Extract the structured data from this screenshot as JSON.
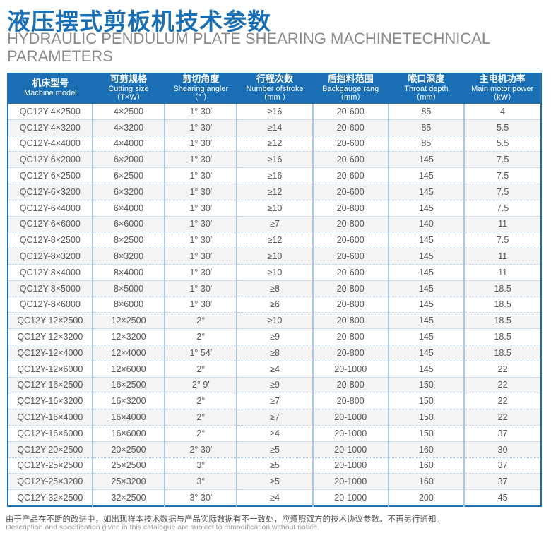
{
  "title": "液压摆式剪板机技术参数",
  "subtitle": "HYDRAULIC PENDULUM PLATE SHEARING MACHINETECHNICAL PARAMETERS",
  "headers": [
    {
      "cn": "机床型号",
      "en": "Machine model",
      "unit": ""
    },
    {
      "cn": "可剪规格",
      "en": "Cutting size",
      "unit": "（T×W）"
    },
    {
      "cn": "剪切角度",
      "en": "Shearing angler",
      "unit": "（°  ）"
    },
    {
      "cn": "行程次数",
      "en": "Number ofstroke",
      "unit": "（mm ）"
    },
    {
      "cn": "后挡料范围",
      "en": "Backgauge rang",
      "unit": "（mm）"
    },
    {
      "cn": "喉口深度",
      "en": "Throat depth",
      "unit": "（mm）"
    },
    {
      "cn": "主电机功率",
      "en": "Main motor power",
      "unit": "（kW）"
    }
  ],
  "rows": [
    [
      "QC12Y-4×2500",
      "4×2500",
      "1°  30′",
      "≥16",
      "20-600",
      "85",
      "4"
    ],
    [
      "QC12Y-4×3200",
      "4×3200",
      "1°  30′",
      "≥14",
      "20-600",
      "85",
      "5.5"
    ],
    [
      "QC12Y-4×4000",
      "4×4000",
      "1°  30′",
      "≥12",
      "20-600",
      "85",
      "5.5"
    ],
    [
      "QC12Y-6×2000",
      "6×2000",
      "1°  30′",
      "≥16",
      "20-600",
      "145",
      "7.5"
    ],
    [
      "QC12Y-6×2500",
      "6×2500",
      "1°  30′",
      "≥16",
      "20-600",
      "145",
      "7.5"
    ],
    [
      "QC12Y-6×3200",
      "6×3200",
      "1°  30′",
      "≥12",
      "20-600",
      "145",
      "7.5"
    ],
    [
      "QC12Y-6×4000",
      "6×4000",
      "1°  30′",
      "≥10",
      "20-800",
      "145",
      "7.5"
    ],
    [
      "QC12Y-6×6000",
      "6×6000",
      "1°  30′",
      "≥7",
      "20-800",
      "140",
      "11"
    ],
    [
      "QC12Y-8×2500",
      "8×2500",
      "1°  30′",
      "≥12",
      "20-600",
      "145",
      "7.5"
    ],
    [
      "QC12Y-8×3200",
      "8×3200",
      "1°  30′",
      "≥10",
      "20-600",
      "145",
      "11"
    ],
    [
      "QC12Y-8×4000",
      "8×4000",
      "1°  30′",
      "≥10",
      "20-600",
      "145",
      "11"
    ],
    [
      "QC12Y-8×5000",
      "8×5000",
      "1°  30′",
      "≥8",
      "20-800",
      "145",
      "18.5"
    ],
    [
      "QC12Y-8×6000",
      "8×6000",
      "1°  30′",
      "≥6",
      "20-800",
      "145",
      "18.5"
    ],
    [
      "QC12Y-12×2500",
      "12×2500",
      "2°",
      "≥10",
      "20-800",
      "145",
      "18.5"
    ],
    [
      "QC12Y-12×3200",
      "12×3200",
      "2°",
      "≥9",
      "20-800",
      "145",
      "18.5"
    ],
    [
      "QC12Y-12×4000",
      "12×4000",
      "1°  54′",
      "≥8",
      "20-800",
      "145",
      "18.5"
    ],
    [
      "QC12Y-12×6000",
      "12×6000",
      "2°",
      "≥4",
      "20-1000",
      "145",
      "22"
    ],
    [
      "QC12Y-16×2500",
      "16×2500",
      "2°  9′",
      "≥9",
      "20-800",
      "150",
      "22"
    ],
    [
      "QC12Y-16×3200",
      "16×3200",
      "2°",
      "≥7",
      "20-800",
      "150",
      "22"
    ],
    [
      "QC12Y-16×4000",
      "16×4000",
      "2°",
      "≥7",
      "20-1000",
      "150",
      "22"
    ],
    [
      "QC12Y-16×6000",
      "16×6000",
      "2°",
      "≥4",
      "20-1000",
      "150",
      "37"
    ],
    [
      "QC12Y-20×2500",
      "20×2500",
      "2°  30′",
      "≥5",
      "20-1000",
      "160",
      "30"
    ],
    [
      "QC12Y-25×2500",
      "25×2500",
      "3°",
      "≥5",
      "20-1000",
      "160",
      "37"
    ],
    [
      "QC12Y-25×3200",
      "25×3200",
      "3°",
      "≥5",
      "20-1000",
      "160",
      "37"
    ],
    [
      "QC12Y-32×2500",
      "32×2500",
      "3°  30′",
      "≥4",
      "20-1000",
      "200",
      "45"
    ]
  ],
  "note_cn": "由于产品在不断的改进中，如出现样本技术数据与产品实际数据有不一致处，应遵照双方的技术协议参数。不再另行通知。",
  "note_en": "Description and specification given in this catalogue are subiect to mmodification without notice."
}
